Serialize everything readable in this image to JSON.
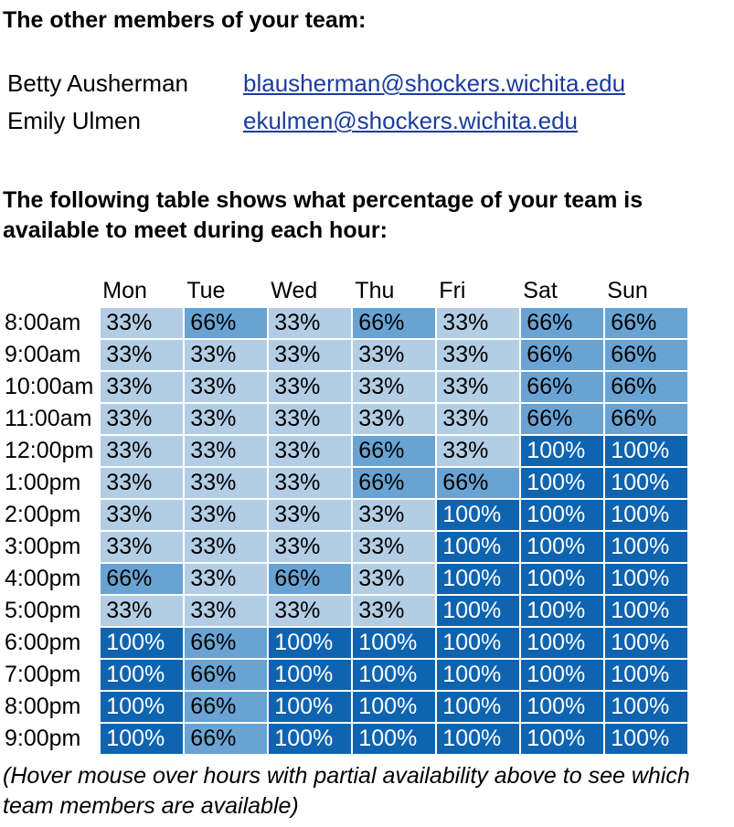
{
  "team_heading": "The other members of your team:",
  "members": [
    {
      "name": "Betty Ausherman",
      "email": "blausherman@shockers.wichita.edu"
    },
    {
      "name": "Emily Ulmen",
      "email": "ekulmen@shockers.wichita.edu"
    }
  ],
  "table_heading": "The following table shows what percentage of your team is available to meet during each hour:",
  "colors": {
    "p33": "#b3cde5",
    "p66": "#69a3d4",
    "p100": "#0e64b0"
  },
  "availability": {
    "days": [
      "Mon",
      "Tue",
      "Wed",
      "Thu",
      "Fri",
      "Sat",
      "Sun"
    ],
    "rows": [
      {
        "time": "8:00am",
        "values": [
          "33%",
          "66%",
          "33%",
          "66%",
          "33%",
          "66%",
          "66%"
        ]
      },
      {
        "time": "9:00am",
        "values": [
          "33%",
          "33%",
          "33%",
          "33%",
          "33%",
          "66%",
          "66%"
        ]
      },
      {
        "time": "10:00am",
        "values": [
          "33%",
          "33%",
          "33%",
          "33%",
          "33%",
          "66%",
          "66%"
        ]
      },
      {
        "time": "11:00am",
        "values": [
          "33%",
          "33%",
          "33%",
          "33%",
          "33%",
          "66%",
          "66%"
        ]
      },
      {
        "time": "12:00pm",
        "values": [
          "33%",
          "33%",
          "33%",
          "66%",
          "33%",
          "100%",
          "100%"
        ]
      },
      {
        "time": "1:00pm",
        "values": [
          "33%",
          "33%",
          "33%",
          "66%",
          "66%",
          "100%",
          "100%"
        ]
      },
      {
        "time": "2:00pm",
        "values": [
          "33%",
          "33%",
          "33%",
          "33%",
          "100%",
          "100%",
          "100%"
        ]
      },
      {
        "time": "3:00pm",
        "values": [
          "33%",
          "33%",
          "33%",
          "33%",
          "100%",
          "100%",
          "100%"
        ]
      },
      {
        "time": "4:00pm",
        "values": [
          "66%",
          "33%",
          "66%",
          "33%",
          "100%",
          "100%",
          "100%"
        ]
      },
      {
        "time": "5:00pm",
        "values": [
          "33%",
          "33%",
          "33%",
          "33%",
          "100%",
          "100%",
          "100%"
        ]
      },
      {
        "time": "6:00pm",
        "values": [
          "100%",
          "66%",
          "100%",
          "100%",
          "100%",
          "100%",
          "100%"
        ]
      },
      {
        "time": "7:00pm",
        "values": [
          "100%",
          "66%",
          "100%",
          "100%",
          "100%",
          "100%",
          "100%"
        ]
      },
      {
        "time": "8:00pm",
        "values": [
          "100%",
          "66%",
          "100%",
          "100%",
          "100%",
          "100%",
          "100%"
        ]
      },
      {
        "time": "9:00pm",
        "values": [
          "100%",
          "66%",
          "100%",
          "100%",
          "100%",
          "100%",
          "100%"
        ]
      }
    ]
  },
  "note": "(Hover mouse over hours with partial availability above to see which team members are available)"
}
